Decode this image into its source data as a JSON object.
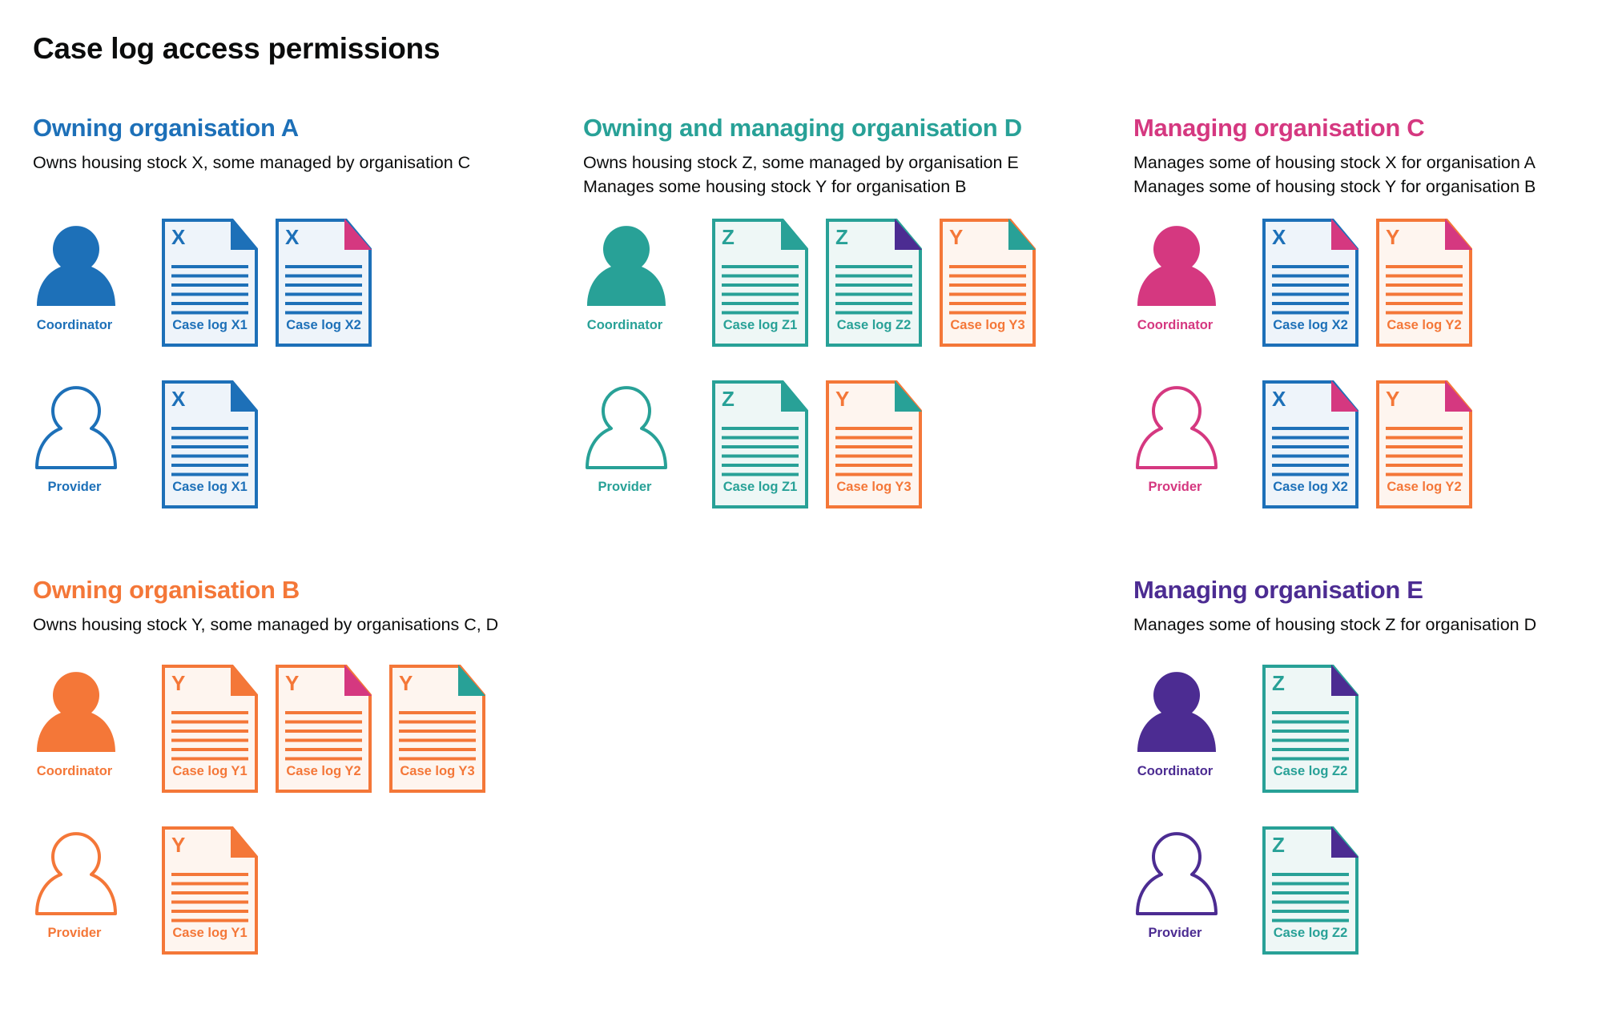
{
  "title": "Case log access permissions",
  "colors": {
    "blue": "#1d70b8",
    "teal": "#28a197",
    "pink": "#d53880",
    "orange": "#f47738",
    "purple": "#4c2c92",
    "blue_tint": "#eef4fa",
    "teal_tint": "#eef7f6",
    "orange_tint": "#fef5ef"
  },
  "sections": [
    {
      "title": "Owning organisation A",
      "color": "blue",
      "description": [
        "Owns housing stock X, some managed by organisation C"
      ],
      "roles": [
        {
          "label": "Coordinator",
          "icon": "person-filled-icon",
          "docs": [
            {
              "letter": "X",
              "label": "Case log X1",
              "color": "blue",
              "corner": "blue"
            },
            {
              "letter": "X",
              "label": "Case log X2",
              "color": "blue",
              "corner": "pink"
            }
          ]
        },
        {
          "label": "Provider",
          "icon": "person-outline-icon",
          "docs": [
            {
              "letter": "X",
              "label": "Case log X1",
              "color": "blue",
              "corner": "blue"
            }
          ]
        }
      ]
    },
    {
      "title": "Owning and managing organisation D",
      "color": "teal",
      "description": [
        "Owns housing stock Z, some managed by organisation E",
        "Manages some housing stock Y for organisation B"
      ],
      "roles": [
        {
          "label": "Coordinator",
          "icon": "person-filled-icon",
          "docs": [
            {
              "letter": "Z",
              "label": "Case log Z1",
              "color": "teal",
              "corner": "teal"
            },
            {
              "letter": "Z",
              "label": "Case log Z2",
              "color": "teal",
              "corner": "purple"
            },
            {
              "letter": "Y",
              "label": "Case log Y3",
              "color": "orange",
              "corner": "teal"
            }
          ]
        },
        {
          "label": "Provider",
          "icon": "person-outline-icon",
          "docs": [
            {
              "letter": "Z",
              "label": "Case log Z1",
              "color": "teal",
              "corner": "teal"
            },
            {
              "letter": "Y",
              "label": "Case log Y3",
              "color": "orange",
              "corner": "teal"
            }
          ]
        }
      ]
    },
    {
      "title": "Managing organisation C",
      "color": "pink",
      "description": [
        "Manages some of housing stock X for organisation A",
        "Manages some of housing stock Y for organisation B"
      ],
      "roles": [
        {
          "label": "Coordinator",
          "icon": "person-filled-icon",
          "docs": [
            {
              "letter": "X",
              "label": "Case log X2",
              "color": "blue",
              "corner": "pink"
            },
            {
              "letter": "Y",
              "label": "Case log Y2",
              "color": "orange",
              "corner": "pink"
            }
          ]
        },
        {
          "label": "Provider",
          "icon": "person-outline-icon",
          "docs": [
            {
              "letter": "X",
              "label": "Case log X2",
              "color": "blue",
              "corner": "pink"
            },
            {
              "letter": "Y",
              "label": "Case log Y2",
              "color": "orange",
              "corner": "pink"
            }
          ]
        }
      ]
    },
    {
      "title": "Owning organisation B",
      "color": "orange",
      "description": [
        "Owns housing stock Y, some managed by organisations C, D"
      ],
      "roles": [
        {
          "label": "Coordinator",
          "icon": "person-filled-icon",
          "docs": [
            {
              "letter": "Y",
              "label": "Case log Y1",
              "color": "orange",
              "corner": "orange"
            },
            {
              "letter": "Y",
              "label": "Case log Y2",
              "color": "orange",
              "corner": "pink"
            },
            {
              "letter": "Y",
              "label": "Case log Y3",
              "color": "orange",
              "corner": "teal"
            }
          ]
        },
        {
          "label": "Provider",
          "icon": "person-outline-icon",
          "docs": [
            {
              "letter": "Y",
              "label": "Case log Y1",
              "color": "orange",
              "corner": "orange"
            }
          ]
        }
      ]
    },
    {
      "title": "Managing organisation E",
      "color": "purple",
      "description": [
        "Manages some of housing stock Z for organisation D"
      ],
      "roles": [
        {
          "label": "Coordinator",
          "icon": "person-filled-icon",
          "docs": [
            {
              "letter": "Z",
              "label": "Case log Z2",
              "color": "teal",
              "corner": "purple"
            }
          ]
        },
        {
          "label": "Provider",
          "icon": "person-outline-icon",
          "docs": [
            {
              "letter": "Z",
              "label": "Case log Z2",
              "color": "teal",
              "corner": "purple"
            }
          ]
        }
      ]
    }
  ]
}
